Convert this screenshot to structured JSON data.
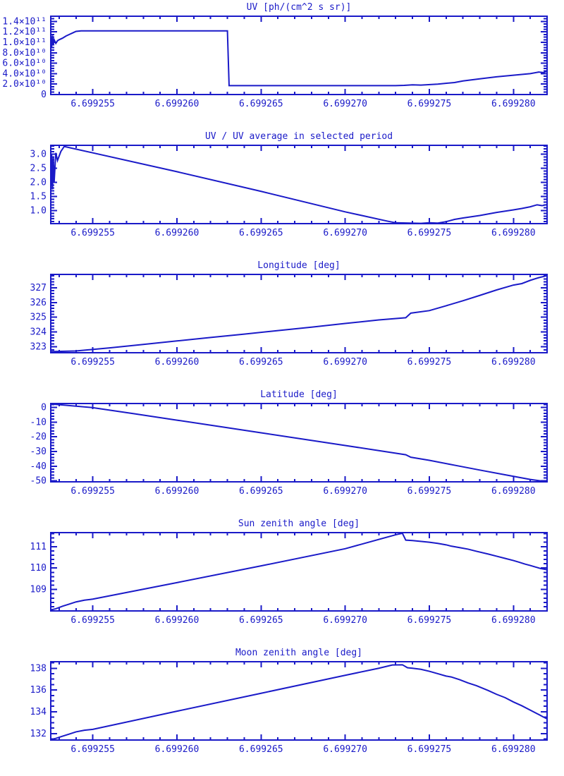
{
  "window": {
    "background": "#ffffff"
  },
  "style": {
    "accent_color": "#1a1ac8"
  },
  "chart_data": [
    {
      "type": "line",
      "title": "UV [ph/(cm^2 s sr)]",
      "xlabel": "",
      "ylabel": "",
      "xlim": [
        6.6992525,
        6.699282
      ],
      "ylim": [
        0,
        150000000000.0
      ],
      "x_major_ticks": [
        6.699255,
        6.69926,
        6.699265,
        6.69927,
        6.699275,
        6.69928
      ],
      "x_tick_labels": [
        "6.699255",
        "6.699260",
        "6.699265",
        "6.699270",
        "6.699275",
        "6.699280"
      ],
      "x_minor_interval": 1e-06,
      "y_major_ticks": [
        0,
        20000000000.0,
        40000000000.0,
        60000000000.0,
        80000000000.0,
        100000000000.0,
        120000000000.0,
        140000000000.0
      ],
      "y_tick_labels": [
        "0",
        "2.0×10¹⁰",
        "4.0×10¹⁰",
        "6.0×10¹⁰",
        "8.0×10¹⁰",
        "1.0×10¹¹",
        "1.2×10¹¹",
        "1.4×10¹¹"
      ],
      "y_minor_interval": 5000000000.0,
      "x": [
        6.6992525,
        6.69925255,
        6.6992526,
        6.69925265,
        6.6992527,
        6.6992528,
        6.6992529,
        6.699253,
        6.6992532,
        6.6992534,
        6.6992536,
        6.6992538,
        6.699254,
        6.6992543,
        6.699263,
        6.6992631,
        6.699273,
        6.6992735,
        6.699274,
        6.6992745,
        6.6992755,
        6.6992765,
        6.699277,
        6.699278,
        6.699279,
        6.69928,
        6.6992805,
        6.699281,
        6.6992815,
        6.6992818,
        6.699282
      ],
      "y": [
        110000000000.0,
        90000000000.0,
        113000000000.0,
        95000000000.0,
        105000000000.0,
        98000000000.0,
        103000000000.0,
        105000000000.0,
        108000000000.0,
        112000000000.0,
        115000000000.0,
        118000000000.0,
        121000000000.0,
        122000000000.0,
        122000000000.0,
        17000000000.0,
        17000000000.0,
        17500000000.0,
        18500000000.0,
        18000000000.0,
        20000000000.0,
        23000000000.0,
        26000000000.0,
        30000000000.0,
        34000000000.0,
        37000000000.0,
        38500000000.0,
        40000000000.0,
        43000000000.0,
        42000000000.0,
        45000000000.0
      ]
    },
    {
      "type": "line",
      "title": "UV / UV average in selected period",
      "xlabel": "",
      "ylabel": "",
      "xlim": [
        6.6992525,
        6.699282
      ],
      "ylim": [
        0.53,
        3.32
      ],
      "x_major_ticks": [
        6.699255,
        6.69926,
        6.699265,
        6.69927,
        6.699275,
        6.69928
      ],
      "x_tick_labels": [
        "6.699255",
        "6.699260",
        "6.699265",
        "6.699270",
        "6.699275",
        "6.699280"
      ],
      "x_minor_interval": 1e-06,
      "y_major_ticks": [
        1.0,
        1.5,
        2.0,
        2.5,
        3.0
      ],
      "y_tick_labels": [
        "1.0",
        "1.5",
        "2.0",
        "2.5",
        "3.0"
      ],
      "y_minor_interval": 0.1,
      "x": [
        6.6992525,
        6.69925255,
        6.6992526,
        6.69925265,
        6.6992527,
        6.6992528,
        6.6992529,
        6.6992531,
        6.6992533,
        6.69926,
        6.699265,
        6.69927,
        6.6992725,
        6.699273,
        6.6992745,
        6.699275,
        6.6992755,
        6.699276,
        6.6992765,
        6.699277,
        6.699278,
        6.699279,
        6.69928,
        6.6992805,
        6.699281,
        6.6992814,
        6.6992817,
        6.699282
      ],
      "y": [
        1.7,
        3.0,
        1.75,
        2.9,
        2.0,
        3.05,
        2.78,
        3.1,
        3.28,
        2.38,
        1.68,
        0.95,
        0.62,
        0.56,
        0.54,
        0.56,
        0.55,
        0.6,
        0.68,
        0.73,
        0.82,
        0.93,
        1.02,
        1.07,
        1.13,
        1.2,
        1.17,
        1.21
      ]
    },
    {
      "type": "line",
      "title": "Longitude [deg]",
      "xlabel": "",
      "ylabel": "",
      "xlim": [
        6.6992525,
        6.699282
      ],
      "ylim": [
        322.6,
        327.9
      ],
      "x_major_ticks": [
        6.699255,
        6.69926,
        6.699265,
        6.69927,
        6.699275,
        6.69928
      ],
      "x_tick_labels": [
        "6.699255",
        "6.699260",
        "6.699265",
        "6.699270",
        "6.699275",
        "6.699280"
      ],
      "x_minor_interval": 1e-06,
      "y_major_ticks": [
        323,
        324,
        325,
        326,
        327
      ],
      "y_tick_labels": [
        "323",
        "324",
        "325",
        "326",
        "327"
      ],
      "y_minor_interval": 0.2,
      "x": [
        6.6992525,
        6.699254,
        6.699256,
        6.699258,
        6.69926,
        6.699262,
        6.699264,
        6.699266,
        6.699268,
        6.69927,
        6.699272,
        6.6992736,
        6.6992739,
        6.699275,
        6.699276,
        6.699277,
        6.699278,
        6.699279,
        6.69928,
        6.6992805,
        6.699281,
        6.6992815,
        6.699282
      ],
      "y": [
        322.68,
        322.72,
        322.93,
        323.16,
        323.4,
        323.63,
        323.86,
        324.1,
        324.33,
        324.58,
        324.82,
        324.97,
        325.28,
        325.45,
        325.78,
        326.12,
        326.48,
        326.85,
        327.18,
        327.28,
        327.5,
        327.68,
        327.82
      ]
    },
    {
      "type": "line",
      "title": "Latitude [deg]",
      "xlabel": "",
      "ylabel": "",
      "xlim": [
        6.6992525,
        6.699282
      ],
      "ylim": [
        -50.6,
        2.6
      ],
      "x_major_ticks": [
        6.699255,
        6.69926,
        6.699265,
        6.69927,
        6.699275,
        6.69928
      ],
      "x_tick_labels": [
        "6.699255",
        "6.699260",
        "6.699265",
        "6.699270",
        "6.699275",
        "6.699280"
      ],
      "x_minor_interval": 1e-06,
      "y_major_ticks": [
        0,
        -10,
        -20,
        -30,
        -40,
        -50
      ],
      "y_tick_labels": [
        "0",
        "-10",
        "-20",
        "-30",
        "-40",
        "-50"
      ],
      "y_minor_interval": 2,
      "x": [
        6.6992525,
        6.699255,
        6.6992575,
        6.69926,
        6.6992625,
        6.699265,
        6.6992675,
        6.69927,
        6.699272,
        6.6992736,
        6.6992739,
        6.699275,
        6.6992765,
        6.699278,
        6.6992795,
        6.699281,
        6.699282
      ],
      "y": [
        2.3,
        -0.2,
        -4.4,
        -8.7,
        -13.0,
        -17.3,
        -21.6,
        -25.9,
        -29.4,
        -32.2,
        -33.9,
        -36.0,
        -39.3,
        -42.6,
        -45.8,
        -49.0,
        -50.55
      ]
    },
    {
      "type": "line",
      "title": "Sun zenith angle [deg]",
      "xlabel": "",
      "ylabel": "",
      "xlim": [
        6.6992525,
        6.699282
      ],
      "ylim": [
        108.0,
        111.65
      ],
      "x_major_ticks": [
        6.699255,
        6.69926,
        6.699265,
        6.69927,
        6.699275,
        6.69928
      ],
      "x_tick_labels": [
        "6.699255",
        "6.699260",
        "6.699265",
        "6.699270",
        "6.699275",
        "6.699280"
      ],
      "x_minor_interval": 1e-06,
      "y_major_ticks": [
        109,
        110,
        111
      ],
      "y_tick_labels": [
        "109",
        "110",
        "111"
      ],
      "y_minor_interval": 0.2,
      "x": [
        6.6992525,
        6.6992528,
        6.6992532,
        6.6992536,
        6.699254,
        6.6992545,
        6.699255,
        6.69926,
        6.699265,
        6.69927,
        6.699273,
        6.6992734,
        6.6992736,
        6.699274,
        6.699275,
        6.6992755,
        6.699276,
        6.6992763,
        6.6992768,
        6.6992773,
        6.6992778,
        6.6992785,
        6.699279,
        6.6992795,
        6.69928,
        6.6992803,
        6.6992807,
        6.699281,
        6.6992813,
        6.6992816,
        6.699282
      ],
      "y": [
        108.05,
        108.1,
        108.22,
        108.32,
        108.42,
        108.5,
        108.55,
        109.32,
        110.1,
        110.9,
        111.55,
        111.62,
        111.3,
        111.28,
        111.2,
        111.15,
        111.08,
        111.02,
        110.95,
        110.88,
        110.78,
        110.65,
        110.55,
        110.45,
        110.35,
        110.28,
        110.18,
        110.12,
        110.05,
        109.98,
        109.92
      ]
    },
    {
      "type": "line",
      "title": "Moon zenith angle [deg]",
      "xlabel": "",
      "ylabel": "",
      "xlim": [
        6.6992525,
        6.699282
      ],
      "ylim": [
        131.4,
        138.6
      ],
      "x_major_ticks": [
        6.699255,
        6.69926,
        6.699265,
        6.69927,
        6.699275,
        6.69928
      ],
      "x_tick_labels": [
        "6.699255",
        "6.699260",
        "6.699265",
        "6.699270",
        "6.699275",
        "6.699280"
      ],
      "x_minor_interval": 1e-06,
      "y_major_ticks": [
        132,
        134,
        136,
        138
      ],
      "y_tick_labels": [
        "132",
        "134",
        "136",
        "138"
      ],
      "y_minor_interval": 0.5,
      "x": [
        6.6992525,
        6.6992528,
        6.6992532,
        6.6992536,
        6.699254,
        6.6992545,
        6.699255,
        6.69926,
        6.699265,
        6.69927,
        6.699272,
        6.6992728,
        6.6992734,
        6.6992737,
        6.699274,
        6.6992745,
        6.699275,
        6.6992755,
        6.699276,
        6.6992763,
        6.6992768,
        6.6992773,
        6.6992778,
        6.6992785,
        6.699279,
        6.6992795,
        6.69928,
        6.6992805,
        6.699281,
        6.6992815,
        6.6992818,
        6.699282
      ],
      "y": [
        131.45,
        131.55,
        131.75,
        131.95,
        132.15,
        132.3,
        132.38,
        134.05,
        135.7,
        137.35,
        138.0,
        138.3,
        138.32,
        138.05,
        138.0,
        137.9,
        137.72,
        137.5,
        137.28,
        137.2,
        136.95,
        136.65,
        136.4,
        135.95,
        135.6,
        135.3,
        134.9,
        134.55,
        134.15,
        133.75,
        133.5,
        133.35
      ]
    }
  ]
}
